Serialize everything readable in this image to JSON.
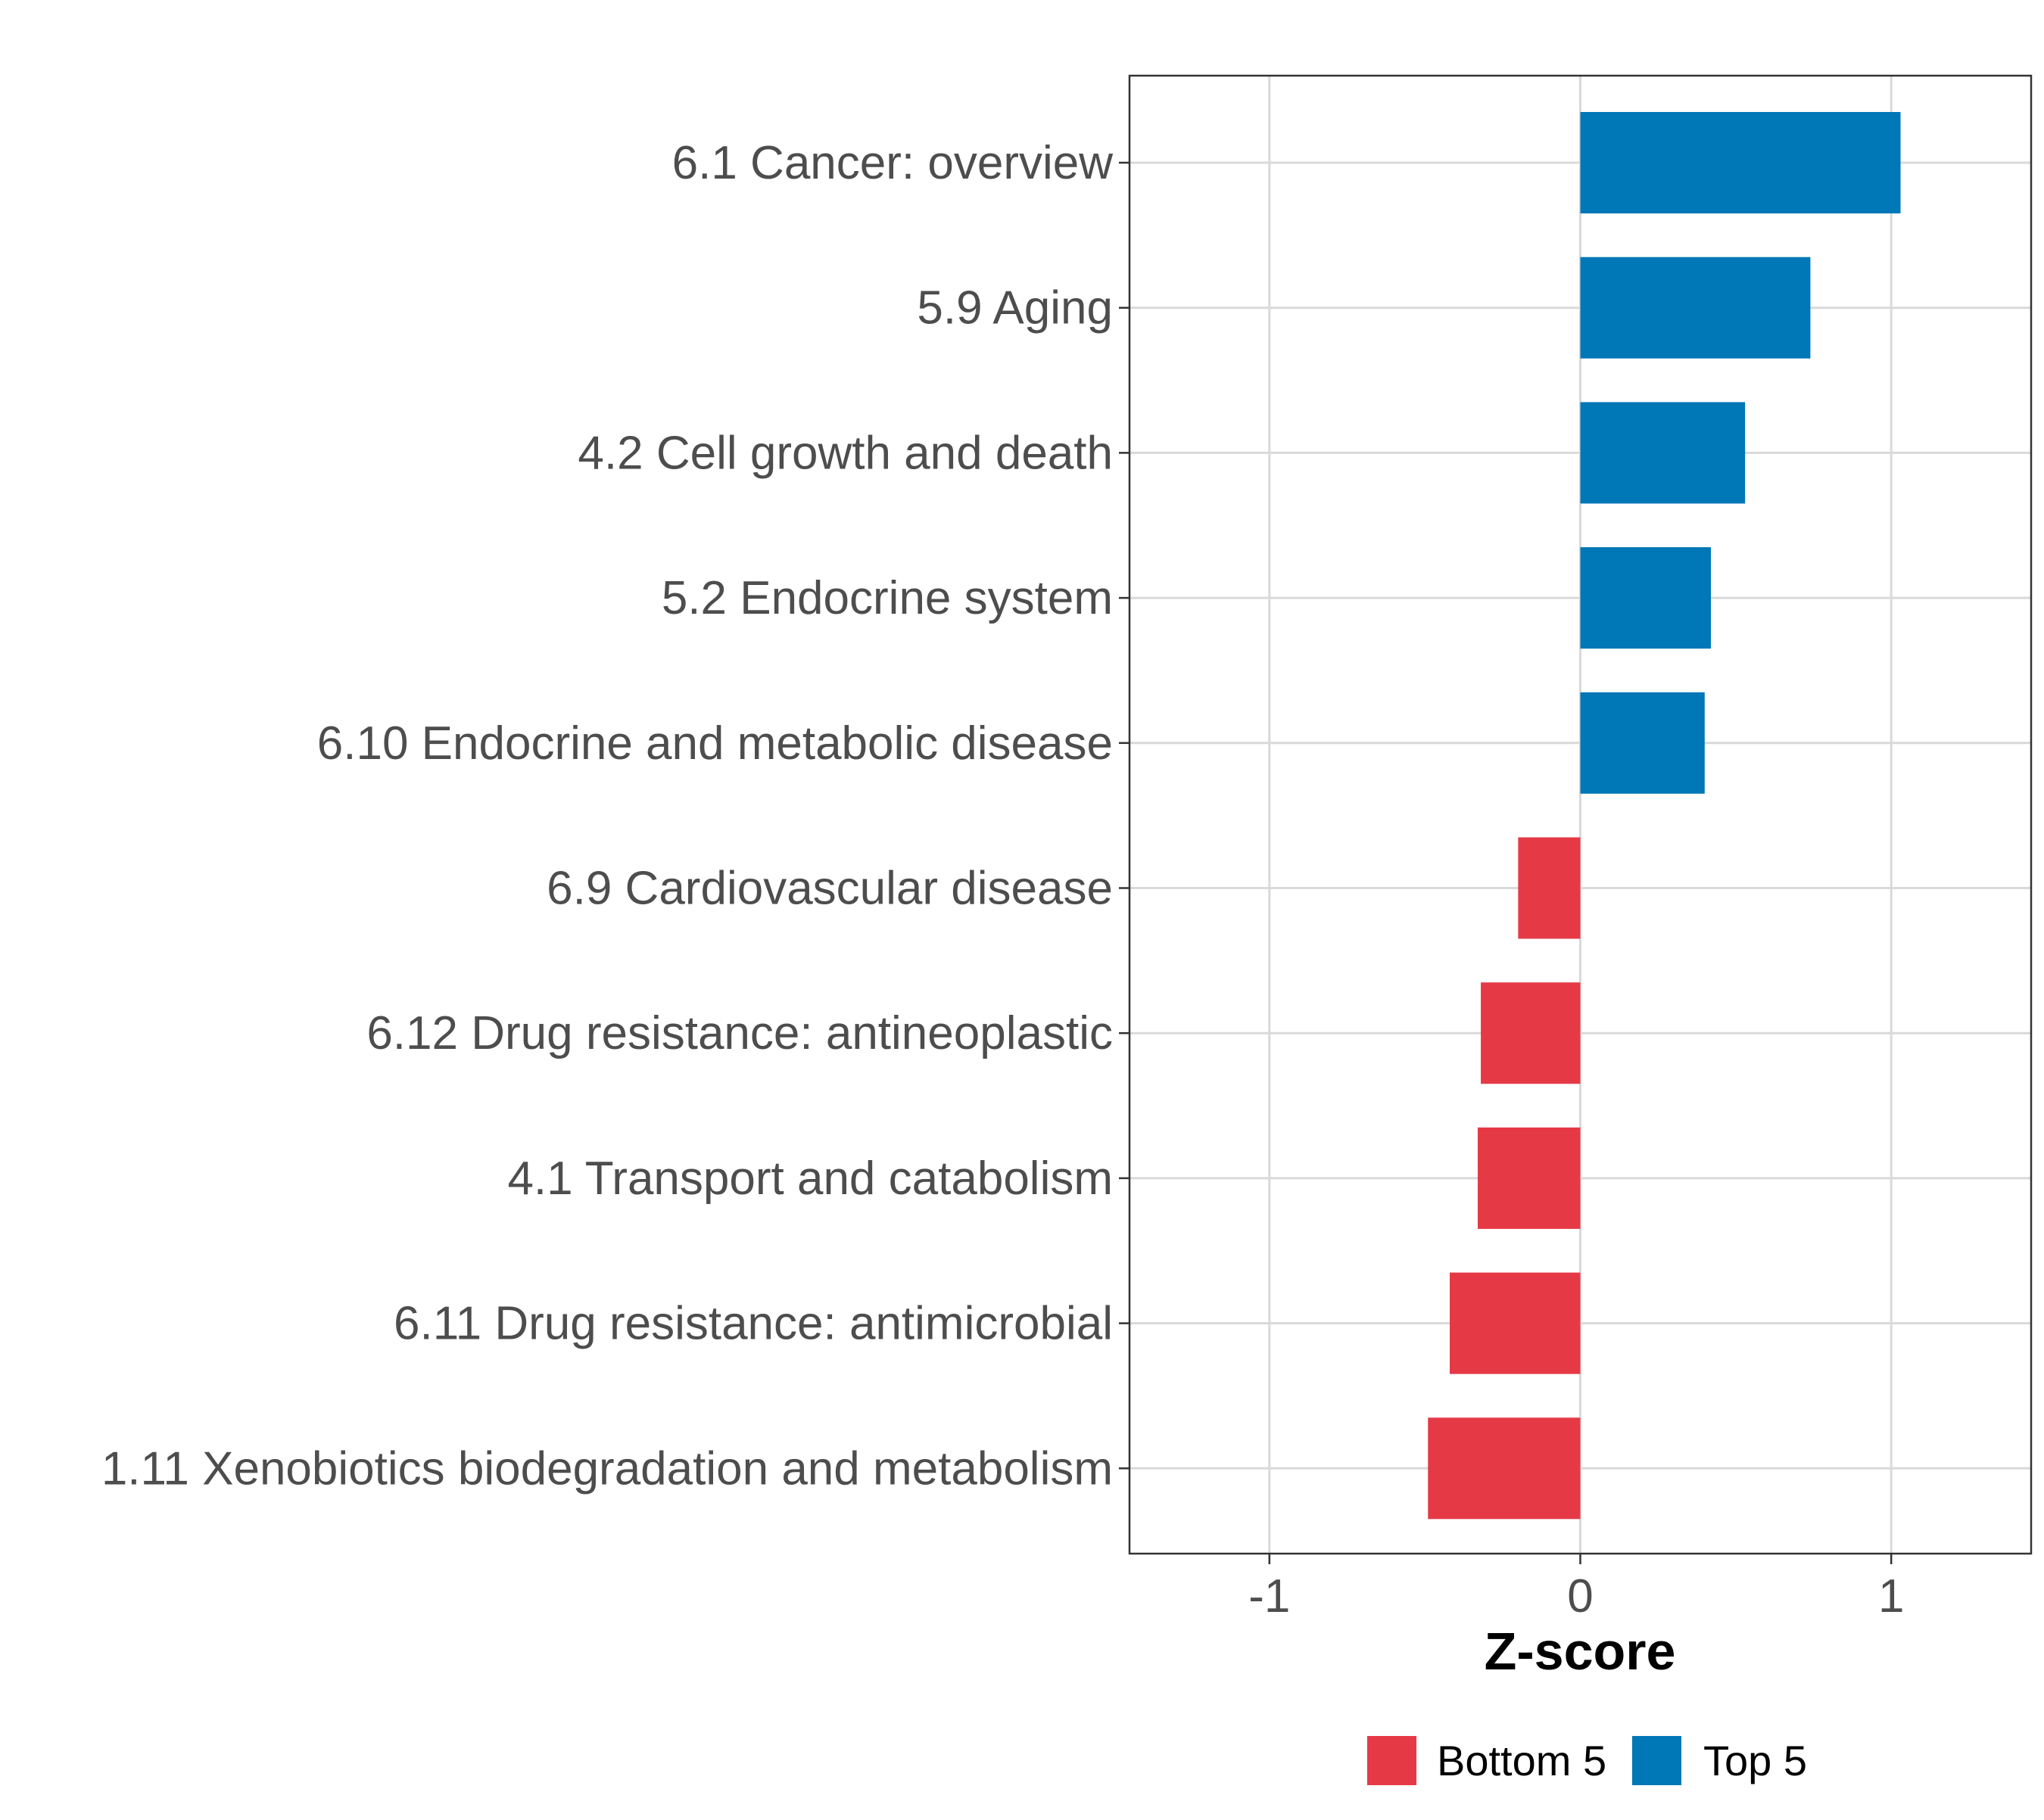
{
  "chart_data": {
    "type": "bar",
    "orientation": "horizontal",
    "title": "",
    "xlabel": "Z-score",
    "ylabel": "",
    "xlim": [
      -1.45,
      1.45
    ],
    "xticks": [
      -1,
      0,
      1
    ],
    "xtick_labels": [
      "-1",
      "0",
      "1"
    ],
    "grid": true,
    "legend_position": "bottom",
    "categories": [
      "6.1 Cancer: overview",
      "5.9 Aging",
      "4.2 Cell growth and death",
      "5.2 Endocrine system",
      "6.10 Endocrine and metabolic disease",
      "6.9 Cardiovascular disease",
      "6.12 Drug resistance: antineoplastic",
      "4.1 Transport and catabolism",
      "6.11 Drug resistance: antimicrobial",
      "1.11 Xenobiotics biodegradation and metabolism"
    ],
    "values": [
      1.03,
      0.74,
      0.53,
      0.42,
      0.4,
      -0.2,
      -0.32,
      -0.33,
      -0.42,
      -0.49
    ],
    "groups": [
      "Top 5",
      "Top 5",
      "Top 5",
      "Top 5",
      "Top 5",
      "Bottom 5",
      "Bottom 5",
      "Bottom 5",
      "Bottom 5",
      "Bottom 5"
    ],
    "legend": [
      {
        "name": "Bottom 5",
        "color": "#e63946"
      },
      {
        "name": "Top 5",
        "color": "#0077b6"
      }
    ]
  }
}
